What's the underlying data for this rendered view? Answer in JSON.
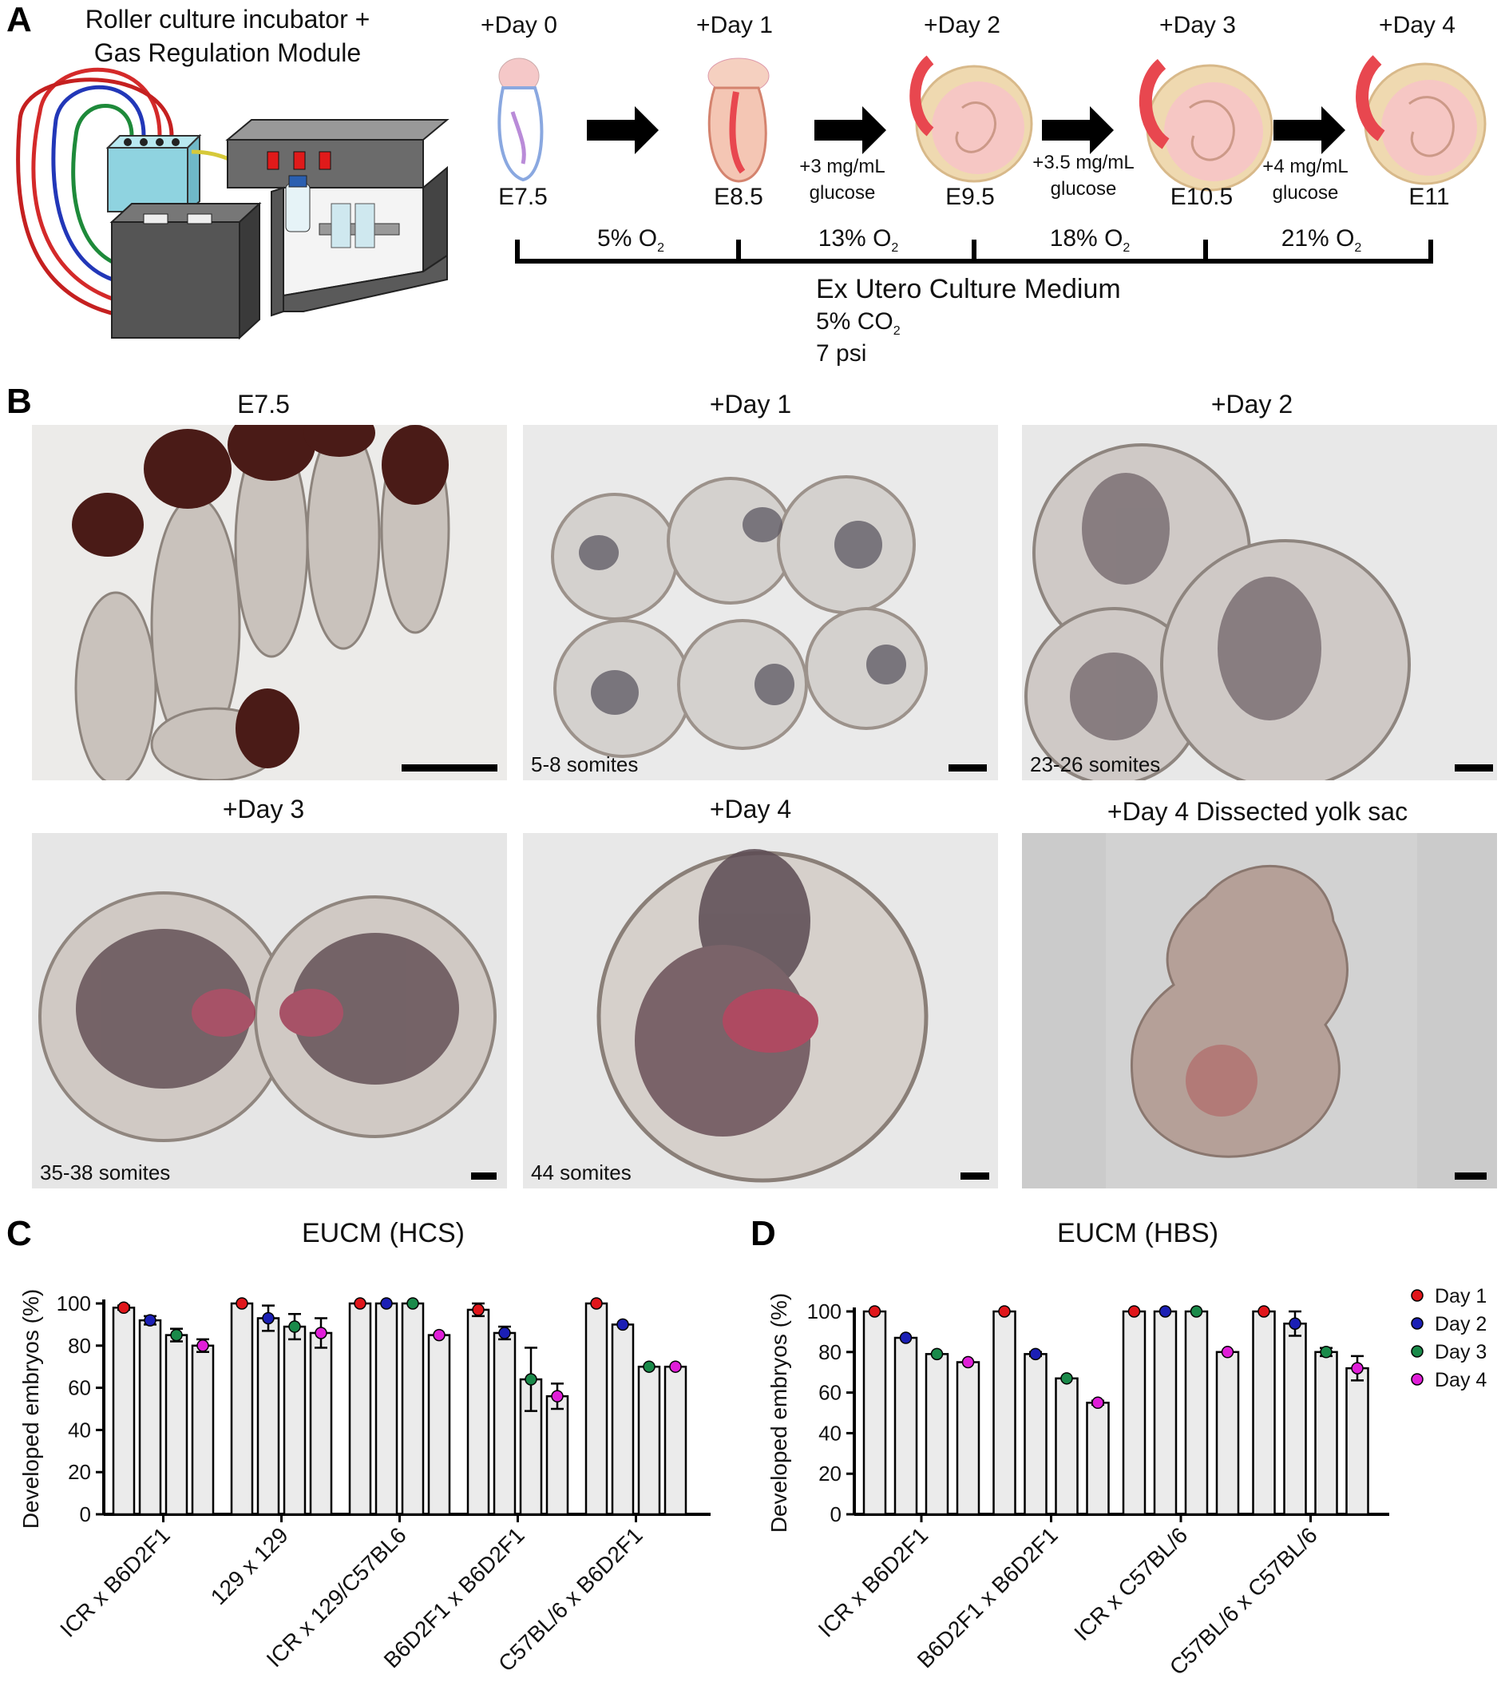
{
  "panel_letters": {
    "a": "A",
    "b": "B",
    "c": "C",
    "d": "D"
  },
  "panel_a": {
    "title_line1": "Roller culture incubator +",
    "title_line2": "Gas Regulation Module",
    "days": [
      "+Day 0",
      "+Day 1",
      "+Day 2",
      "+Day 3",
      "+Day 4"
    ],
    "stages": [
      "E7.5",
      "E8.5",
      "E9.5",
      "E10.5",
      "E11"
    ],
    "glucose": [
      {
        "line1": "+3 mg/mL",
        "line2": "glucose"
      },
      {
        "line1": "+3.5 mg/mL",
        "line2": "glucose"
      },
      {
        "line1": "+4 mg/mL",
        "line2": "glucose"
      }
    ],
    "oxygen": [
      {
        "value": "5% O",
        "sub": "2"
      },
      {
        "value": "13% O",
        "sub": "2"
      },
      {
        "value": "18% O",
        "sub": "2"
      },
      {
        "value": "21% O",
        "sub": "2"
      }
    ],
    "medium": "Ex Utero Culture Medium",
    "co2": {
      "value": "5% CO",
      "sub": "2"
    },
    "pressure": "7 psi",
    "colors": {
      "cables": [
        "#d42a2a",
        "#2237b8",
        "#1e8a3a",
        "#c52020"
      ],
      "module": "#8fd3e0",
      "box": "#555555",
      "tissue": "#f5c8c8",
      "tissue_accent": "#e8474f"
    }
  },
  "panel_b": {
    "photos": [
      {
        "title": "E7.5",
        "somites": ""
      },
      {
        "title": "+Day 1",
        "somites": "5-8 somites"
      },
      {
        "title": "+Day 2",
        "somites": "23-26 somites"
      },
      {
        "title": "+Day 3",
        "somites": "35-38 somites"
      },
      {
        "title": "+Day 4",
        "somites": "44 somites"
      },
      {
        "title": "+Day 4  Dissected yolk sac",
        "somites": ""
      }
    ]
  },
  "chart_data": [
    {
      "type": "bar",
      "title": "EUCM (HCS)",
      "ylabel": "Developed embryos (%)",
      "ylim": [
        0,
        100
      ],
      "yticks": [
        "0",
        "20",
        "40",
        "60",
        "80",
        "100"
      ],
      "categories": [
        "ICR x B6D2F1",
        "129 x 129",
        "ICR x 129/C57BL6",
        "B6D2F1 x B6D2F1",
        "C57BL/6 x B6D2F1"
      ],
      "series": [
        {
          "name": "Day 1",
          "color": "#e0161b",
          "values": [
            98,
            100,
            100,
            97,
            100
          ],
          "error": [
            1,
            0,
            0,
            3,
            0
          ]
        },
        {
          "name": "Day 2",
          "color": "#1b1fb5",
          "values": [
            92,
            93,
            100,
            86,
            90
          ],
          "error": [
            2,
            6,
            0,
            3,
            0
          ]
        },
        {
          "name": "Day 3",
          "color": "#1a8a4a",
          "values": [
            85,
            89,
            100,
            64,
            70
          ],
          "error": [
            3,
            6,
            0,
            15,
            0
          ]
        },
        {
          "name": "Day 4",
          "color": "#e01ed8",
          "values": [
            80,
            86,
            85,
            56,
            70
          ],
          "error": [
            3,
            7,
            0,
            6,
            0
          ]
        }
      ],
      "grid": false
    },
    {
      "type": "bar",
      "title": "EUCM (HBS)",
      "ylabel": "Developed embryos (%)",
      "ylim": [
        0,
        100
      ],
      "yticks": [
        "0",
        "20",
        "40",
        "60",
        "80",
        "100"
      ],
      "categories": [
        "ICR x B6D2F1",
        "B6D2F1 x B6D2F1",
        "ICR x C57BL/6",
        "C57BL/6 x C57BL/6"
      ],
      "series": [
        {
          "name": "Day 1",
          "color": "#e0161b",
          "values": [
            100,
            100,
            100,
            100
          ],
          "error": [
            0,
            0,
            0,
            0
          ]
        },
        {
          "name": "Day 2",
          "color": "#1b1fb5",
          "values": [
            87,
            79,
            100,
            94
          ],
          "error": [
            0,
            1,
            0,
            6
          ]
        },
        {
          "name": "Day 3",
          "color": "#1a8a4a",
          "values": [
            79,
            67,
            100,
            80
          ],
          "error": [
            0,
            0,
            0,
            2
          ]
        },
        {
          "name": "Day 4",
          "color": "#e01ed8",
          "values": [
            75,
            55,
            80,
            72
          ],
          "error": [
            0,
            1,
            0,
            6
          ]
        }
      ],
      "legend": [
        "Day 1",
        "Day 2",
        "Day 3",
        "Day 4"
      ],
      "legend_position": "right",
      "grid": false
    }
  ]
}
